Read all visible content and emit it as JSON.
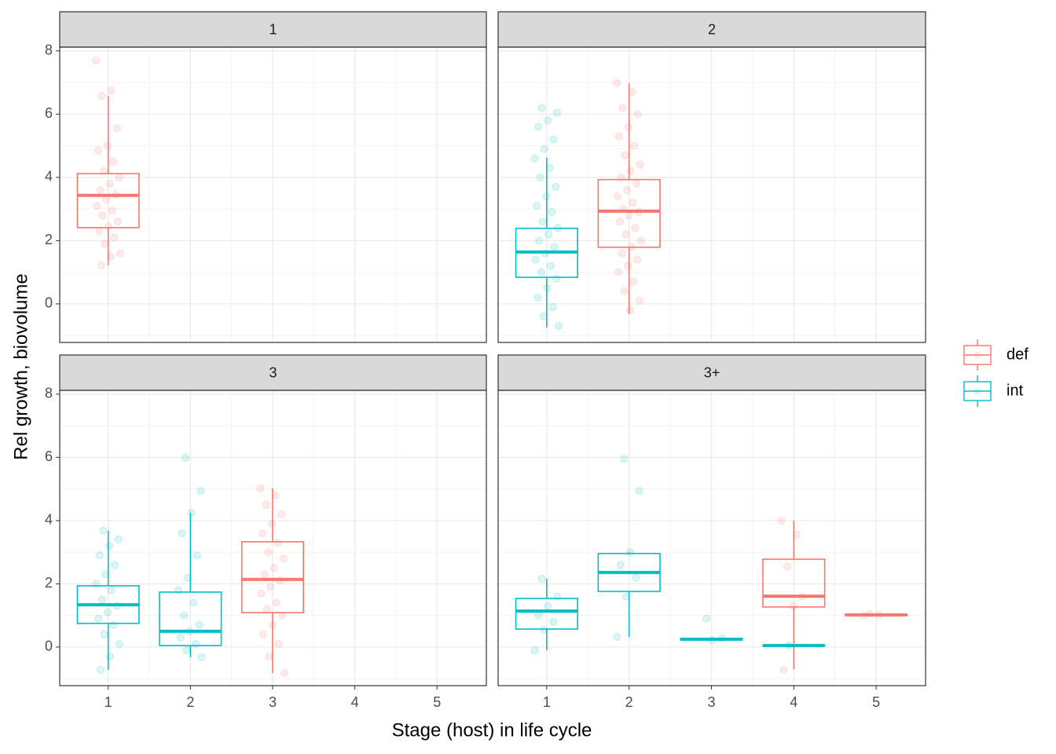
{
  "chart_data": {
    "type": "boxplot",
    "xlabel": "Stage (host) in life cycle",
    "ylabel": "Rel growth, biovolume",
    "facets": [
      "1",
      "2",
      "3",
      "3+"
    ],
    "xlim": [
      0.41,
      5.6
    ],
    "xticks": [
      1,
      2,
      3,
      4,
      5
    ],
    "ylim": [
      -1.22,
      8.12
    ],
    "yticks": [
      0,
      2,
      4,
      6,
      8
    ],
    "grid": true,
    "legend": "right",
    "series": [
      {
        "name": "def",
        "color": "#F8766D",
        "boxes": [
          {
            "facet": "1",
            "x": 1,
            "min": 1.22,
            "q1": 2.41,
            "median": 3.43,
            "q3": 4.12,
            "max": 6.58,
            "points": [
              7.7,
              6.75,
              6.58,
              5.55,
              5.0,
              4.85,
              4.5,
              4.2,
              4.0,
              3.8,
              3.6,
              3.45,
              3.3,
              3.1,
              2.95,
              2.8,
              2.6,
              2.45,
              2.3,
              2.1,
              1.9,
              1.6,
              1.5,
              1.22
            ]
          },
          {
            "facet": "2",
            "x": 2,
            "min": -0.32,
            "q1": 1.79,
            "median": 2.93,
            "q3": 3.93,
            "max": 6.98,
            "points": [
              6.98,
              6.7,
              6.2,
              6.0,
              5.6,
              5.3,
              5.0,
              4.7,
              4.4,
              4.2,
              4.0,
              3.8,
              3.6,
              3.4,
              3.2,
              3.0,
              2.9,
              2.8,
              2.6,
              2.4,
              2.2,
              2.0,
              1.8,
              1.6,
              1.4,
              1.2,
              1.0,
              0.7,
              0.4,
              0.1,
              -0.2
            ]
          },
          {
            "facet": "3",
            "x": 3,
            "min": -0.82,
            "q1": 1.09,
            "median": 2.14,
            "q3": 3.33,
            "max": 5.02,
            "points": [
              5.02,
              4.8,
              4.5,
              4.2,
              3.9,
              3.6,
              3.3,
              3.0,
              2.8,
              2.5,
              2.3,
              2.1,
              1.9,
              1.7,
              1.4,
              1.2,
              1.0,
              0.7,
              0.4,
              0.1,
              -0.3,
              -0.82
            ]
          },
          {
            "facet": "3+",
            "x": 4,
            "min": -0.7,
            "q1": 1.27,
            "median": 1.61,
            "q3": 2.78,
            "max": 4.0,
            "points": [
              4.0,
              3.55,
              2.55,
              1.6,
              1.3,
              -0.72
            ]
          },
          {
            "facet": "3+",
            "x": 5,
            "min": 1.0,
            "q1": 1.01,
            "median": 1.02,
            "q3": 1.03,
            "max": 1.05,
            "points": [
              1.0,
              1.02,
              1.05
            ]
          }
        ]
      },
      {
        "name": "int",
        "color": "#00BFC4",
        "boxes": [
          {
            "facet": "2",
            "x": 1,
            "min": -0.75,
            "q1": 0.84,
            "median": 1.64,
            "q3": 2.39,
            "max": 4.62,
            "points": [
              6.2,
              6.05,
              5.8,
              5.6,
              5.2,
              4.9,
              4.6,
              4.3,
              4.0,
              3.7,
              3.4,
              3.1,
              2.9,
              2.6,
              2.4,
              2.2,
              2.0,
              1.8,
              1.6,
              1.4,
              1.2,
              1.0,
              0.8,
              0.5,
              0.2,
              -0.1,
              -0.4,
              -0.7
            ]
          },
          {
            "facet": "3",
            "x": 1,
            "min": -0.72,
            "q1": 0.75,
            "median": 1.34,
            "q3": 1.94,
            "max": 3.68,
            "points": [
              3.68,
              3.4,
              3.2,
              2.9,
              2.6,
              2.3,
              2.0,
              1.8,
              1.5,
              1.3,
              1.1,
              0.9,
              0.7,
              0.4,
              0.1,
              -0.3,
              -0.72
            ]
          },
          {
            "facet": "3",
            "x": 2,
            "min": -0.32,
            "q1": 0.05,
            "median": 0.5,
            "q3": 1.74,
            "max": 4.25,
            "points": [
              5.99,
              4.94,
              4.25,
              3.6,
              2.9,
              2.2,
              1.8,
              1.4,
              1.0,
              0.7,
              0.5,
              0.3,
              0.1,
              -0.1,
              -0.32
            ]
          },
          {
            "facet": "3+",
            "x": 1,
            "min": -0.1,
            "q1": 0.57,
            "median": 1.14,
            "q3": 1.54,
            "max": 2.16,
            "points": [
              2.16,
              1.6,
              1.3,
              1.0,
              0.8,
              0.55,
              -0.1
            ]
          },
          {
            "facet": "3+",
            "x": 2,
            "min": 0.32,
            "q1": 1.76,
            "median": 2.36,
            "q3": 2.96,
            "max": 3.0,
            "points": [
              5.95,
              4.94,
              3.0,
              2.6,
              2.2,
              1.6,
              0.32
            ]
          },
          {
            "facet": "3+",
            "x": 3,
            "min": 0.22,
            "q1": 0.23,
            "median": 0.25,
            "q3": 0.27,
            "max": 0.28,
            "points": [
              0.9,
              0.28,
              0.22
            ]
          },
          {
            "facet": "3+",
            "x": 4,
            "min": 0.04,
            "q1": 0.05,
            "median": 0.05,
            "q3": 0.05,
            "max": 0.06,
            "points": [
              0.05
            ]
          }
        ]
      }
    ]
  }
}
